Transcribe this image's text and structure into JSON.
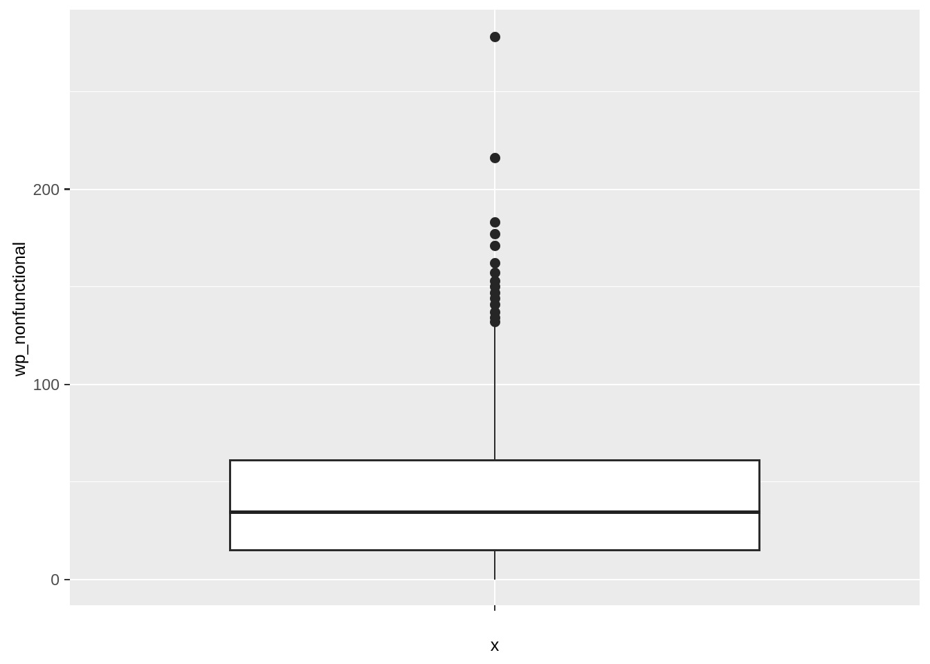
{
  "figure": {
    "background": "#FFFFFF",
    "panel_background": "#EBEBEB",
    "grid_color": "#FFFFFF",
    "stroke_color": "#2B2B2B",
    "outlier_color": "#262626",
    "tick_text_color": "#4D4D4D",
    "axis_title_color": "#000000"
  },
  "chart_data": {
    "type": "boxplot",
    "title": "",
    "xlabel": "x",
    "ylabel": "wp_nonfunctional",
    "categories": [
      "x"
    ],
    "ylim": [
      -13.1,
      292
    ],
    "yticks": [
      0,
      100,
      200
    ],
    "yticks_minor": [
      50,
      150,
      250
    ],
    "grid": true,
    "legend": "none",
    "box_width_frac": 0.625,
    "series": [
      {
        "name": "x",
        "whisker_low": 0,
        "q1": 14.5,
        "median": 34.5,
        "q3": 61.5,
        "whisker_high": 131,
        "outliers": [
          278,
          216,
          183,
          177,
          171,
          162,
          157,
          153,
          150,
          147,
          144,
          141,
          137,
          134,
          132
        ]
      }
    ]
  }
}
